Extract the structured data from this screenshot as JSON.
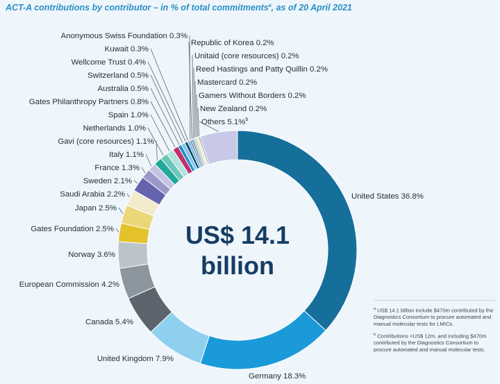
{
  "title": {
    "text": "ACT-A contributions by contributor – in % of total commitments",
    "superscript": "a",
    "suffix": ", as of 20 April 2021"
  },
  "center": {
    "line1": "US$ 14.1",
    "line2": "billion"
  },
  "footnotes": [
    {
      "mark": "a",
      "text": "US$ 14.1 billion include $470m contributed by the Diagnostics Consortium to procure automated and manual molecular tests for LMICs."
    },
    {
      "mark": "b",
      "text": "Contributions <US$ 12m, and including $470m contributed by the Diagnostics Consortium to procure automated and manual molecular tests."
    }
  ],
  "chart_data": {
    "type": "pie",
    "variant": "donut",
    "unit": "%",
    "center_label": "US$ 14.1 billion",
    "slices": [
      {
        "label": "United States",
        "value": 36.8,
        "color": "#156f9a"
      },
      {
        "label": "Germany",
        "value": 18.3,
        "color": "#1a9ad8"
      },
      {
        "label": "United Kingdom",
        "value": 7.9,
        "color": "#8fd0ef"
      },
      {
        "label": "Canada",
        "value": 5.4,
        "color": "#5c656e"
      },
      {
        "label": "European Commission",
        "value": 4.2,
        "color": "#8c969f"
      },
      {
        "label": "Norway",
        "value": 3.6,
        "color": "#bcc4ca"
      },
      {
        "label": "Gates Foundation",
        "value": 2.5,
        "color": "#e4c22c"
      },
      {
        "label": "Japan",
        "value": 2.5,
        "color": "#ecd67a"
      },
      {
        "label": "Saudi Arabia",
        "value": 2.2,
        "color": "#f2ebcc"
      },
      {
        "label": "Sweden",
        "value": 2.1,
        "color": "#6563ae"
      },
      {
        "label": "France",
        "value": 1.3,
        "color": "#9a98c9"
      },
      {
        "label": "Italy",
        "value": 1.1,
        "color": "#c5c3e2"
      },
      {
        "label": "Gavi (core resources)",
        "value": 1.1,
        "color": "#24a89a"
      },
      {
        "label": "Netherlands",
        "value": 1.0,
        "color": "#6cc6ba"
      },
      {
        "label": "Spain",
        "value": 1.0,
        "color": "#b3e2db"
      },
      {
        "label": "Gates Philanthropy Partners",
        "value": 0.8,
        "color": "#c0306c"
      },
      {
        "label": "Australia",
        "value": 0.5,
        "color": "#1d8ec9"
      },
      {
        "label": "Switzerland",
        "value": 0.5,
        "color": "#7cc3e6"
      },
      {
        "label": "Wellcome Trust",
        "value": 0.4,
        "color": "#0d4a73"
      },
      {
        "label": "Kuwait",
        "value": 0.3,
        "color": "#52aee0"
      },
      {
        "label": "Anonymous Swiss Foundation",
        "value": 0.3,
        "color": "#8a929a"
      },
      {
        "label": "Republic of Korea",
        "value": 0.2,
        "color": "#2a5f8a"
      },
      {
        "label": "Unitaid (core resources)",
        "value": 0.2,
        "color": "#3db0e4"
      },
      {
        "label": "Reed Hastings and Patty Quillin",
        "value": 0.2,
        "color": "#a9b1b8"
      },
      {
        "label": "Mastercard",
        "value": 0.2,
        "color": "#f0d65a"
      },
      {
        "label": "Gamers Without Borders",
        "value": 0.2,
        "color": "#e9e0a8"
      },
      {
        "label": "New Zealand",
        "value": 0.2,
        "color": "#8381c0"
      },
      {
        "label": "Others",
        "label_superscript": "b",
        "value": 5.1,
        "color": "#c8c9e6"
      }
    ]
  }
}
